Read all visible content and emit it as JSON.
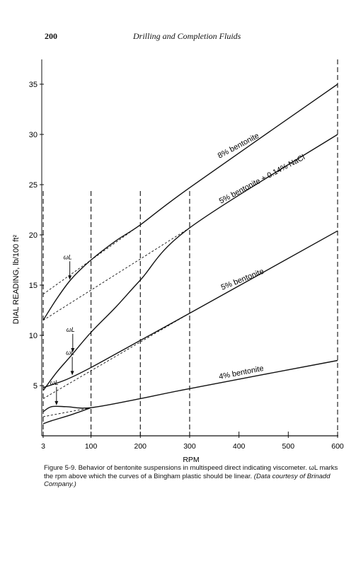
{
  "page": {
    "number": "200",
    "running_title": "Drilling and Completion Fluids"
  },
  "caption": {
    "main": "Figure 5-9. Behavior of bentonite suspensions in multispeed direct indicating viscometer. ωL marks the rpm above which the curves of a Bingham plastic should be linear.",
    "source": "(Data courtesy of Brinadd Company.)"
  },
  "chart_data": {
    "type": "line",
    "xlabel": "RPM",
    "ylabel": "DIAL READING, lb/100 ft²",
    "xlim": [
      0,
      600
    ],
    "ylim": [
      0,
      35
    ],
    "x_ticks": [
      3,
      100,
      200,
      300,
      400,
      500,
      600
    ],
    "x_tick_labels": [
      "3",
      "100",
      "200",
      "300",
      "400",
      "500",
      "600"
    ],
    "y_ticks": [
      5,
      10,
      15,
      20,
      25,
      30,
      35
    ],
    "vertical_dashed_rpm": [
      3,
      100,
      200,
      300,
      600
    ],
    "marker_label": "ωL",
    "series": [
      {
        "name": "8% bentonite",
        "points": [
          [
            3,
            11.5
          ],
          [
            30,
            13.6
          ],
          [
            60,
            15.6
          ],
          [
            100,
            17.5
          ],
          [
            150,
            19.4
          ],
          [
            200,
            21.0
          ],
          [
            300,
            24.7
          ],
          [
            600,
            35.0
          ]
        ],
        "extrapolation": [
          [
            3,
            14.1
          ],
          [
            200,
            21.0
          ]
        ],
        "wL_rpm": 57
      },
      {
        "name": "5% bentonite + 0.14% NaCl",
        "points": [
          [
            3,
            4.5
          ],
          [
            30,
            6.3
          ],
          [
            60,
            8.0
          ],
          [
            100,
            10.3
          ],
          [
            150,
            12.8
          ],
          [
            200,
            15.5
          ],
          [
            300,
            20.7
          ],
          [
            600,
            30.0
          ]
        ],
        "extrapolation": [
          [
            3,
            11.5
          ],
          [
            300,
            20.7
          ]
        ],
        "wL_rpm": 63
      },
      {
        "name": "5% bentonite",
        "points": [
          [
            3,
            4.8
          ],
          [
            50,
            5.6
          ],
          [
            100,
            6.8
          ],
          [
            200,
            9.5
          ],
          [
            300,
            12.2
          ],
          [
            600,
            20.4
          ]
        ],
        "extrapolation": [
          [
            3,
            3.7
          ],
          [
            300,
            12.2
          ]
        ],
        "wL_rpm": 62
      },
      {
        "name": "4% bentonite",
        "points": [
          [
            3,
            2.4
          ],
          [
            20,
            2.9
          ],
          [
            50,
            2.9
          ],
          [
            100,
            2.8
          ],
          [
            200,
            3.7
          ],
          [
            300,
            4.7
          ],
          [
            600,
            7.5
          ]
        ],
        "extrapolation": [
          [
            3,
            1.9
          ],
          [
            100,
            2.8
          ]
        ],
        "wL_rpm": 30
      }
    ],
    "bottom_curve": {
      "points": [
        [
          3,
          1.2
        ],
        [
          20,
          1.5
        ],
        [
          60,
          2.1
        ],
        [
          100,
          2.8
        ]
      ]
    },
    "grid": false,
    "legend": "labels-on-curves"
  }
}
